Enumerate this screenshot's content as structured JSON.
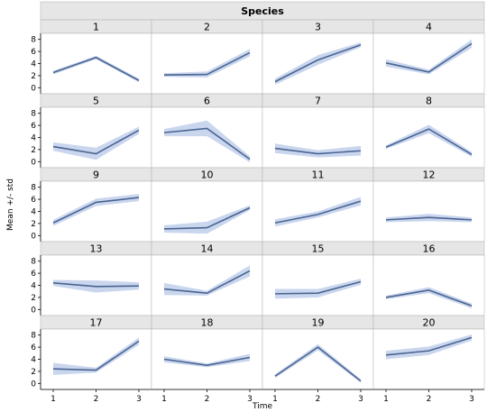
{
  "chart_data": {
    "type": "line",
    "title": "Species",
    "xlabel": "Time",
    "ylabel": "Mean +/- std",
    "x": [
      1,
      2,
      3
    ],
    "ylim": [
      -1,
      9
    ],
    "yticks": [
      0,
      2,
      4,
      6,
      8
    ],
    "grid": false,
    "colors": {
      "line": "#4a6491",
      "band": "#c9d6ee",
      "strip": "#e6e6e6",
      "frame": "#b0b0b0"
    },
    "series": [
      {
        "name": "1",
        "mean": [
          2.5,
          5.0,
          1.2
        ],
        "std": [
          0.3,
          0.3,
          0.3
        ]
      },
      {
        "name": "2",
        "mean": [
          2.1,
          2.2,
          5.8
        ],
        "std": [
          0.3,
          0.5,
          0.6
        ]
      },
      {
        "name": "3",
        "mean": [
          1.0,
          4.6,
          7.1
        ],
        "std": [
          0.5,
          0.8,
          0.4
        ]
      },
      {
        "name": "4",
        "mean": [
          4.1,
          2.6,
          7.3
        ],
        "std": [
          0.6,
          0.4,
          0.7
        ]
      },
      {
        "name": "5",
        "mean": [
          2.5,
          1.3,
          5.2
        ],
        "std": [
          0.7,
          1.0,
          0.6
        ]
      },
      {
        "name": "6",
        "mean": [
          4.8,
          5.5,
          0.4
        ],
        "std": [
          0.6,
          1.3,
          0.5
        ]
      },
      {
        "name": "7",
        "mean": [
          2.2,
          1.3,
          1.8
        ],
        "std": [
          0.8,
          0.6,
          0.8
        ]
      },
      {
        "name": "8",
        "mean": [
          2.4,
          5.4,
          1.2
        ],
        "std": [
          0.3,
          0.7,
          0.4
        ]
      },
      {
        "name": "9",
        "mean": [
          2.1,
          5.5,
          6.3
        ],
        "std": [
          0.5,
          0.6,
          0.6
        ]
      },
      {
        "name": "10",
        "mean": [
          1.1,
          1.3,
          4.6
        ],
        "std": [
          0.6,
          1.0,
          0.4
        ]
      },
      {
        "name": "11",
        "mean": [
          2.1,
          3.5,
          5.7
        ],
        "std": [
          0.6,
          0.5,
          0.7
        ]
      },
      {
        "name": "12",
        "mean": [
          2.6,
          3.0,
          2.6
        ],
        "std": [
          0.4,
          0.6,
          0.4
        ]
      },
      {
        "name": "13",
        "mean": [
          4.4,
          3.8,
          3.9
        ],
        "std": [
          0.5,
          1.0,
          0.6
        ]
      },
      {
        "name": "14",
        "mean": [
          3.4,
          2.7,
          6.4
        ],
        "std": [
          1.0,
          0.4,
          0.9
        ]
      },
      {
        "name": "15",
        "mean": [
          2.6,
          2.7,
          4.6
        ],
        "std": [
          0.8,
          0.7,
          0.5
        ]
      },
      {
        "name": "16",
        "mean": [
          2.0,
          3.2,
          0.6
        ],
        "std": [
          0.3,
          0.5,
          0.4
        ]
      },
      {
        "name": "17",
        "mean": [
          2.4,
          2.2,
          7.0
        ],
        "std": [
          1.0,
          0.4,
          0.6
        ]
      },
      {
        "name": "18",
        "mean": [
          4.0,
          3.0,
          4.3
        ],
        "std": [
          0.5,
          0.3,
          0.6
        ]
      },
      {
        "name": "19",
        "mean": [
          1.2,
          6.0,
          0.4
        ],
        "std": [
          0.3,
          0.5,
          0.3
        ]
      },
      {
        "name": "20",
        "mean": [
          4.7,
          5.4,
          7.6
        ],
        "std": [
          0.7,
          0.7,
          0.5
        ]
      }
    ]
  }
}
